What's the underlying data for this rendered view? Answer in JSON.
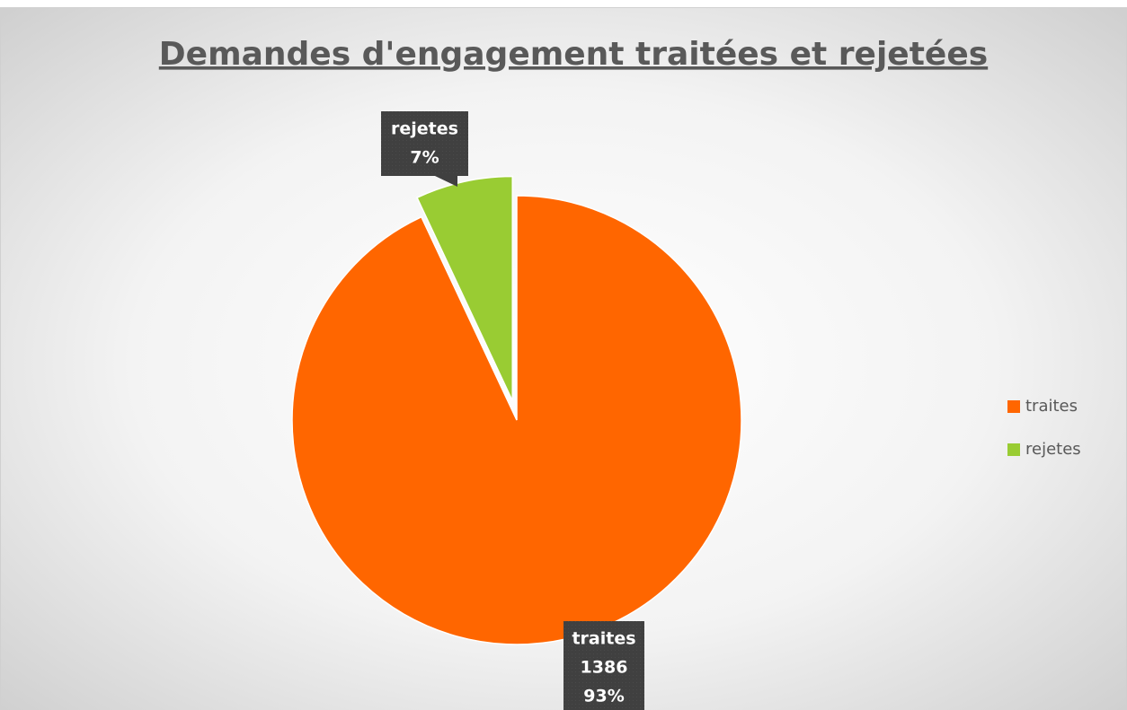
{
  "chart_data": {
    "type": "pie",
    "title": "Demandes d'engagement traitées et rejetées",
    "categories": [
      "traites",
      "rejetes"
    ],
    "values": [
      1386,
      104
    ],
    "percent_labels": [
      "93%",
      "7%"
    ],
    "colors": [
      "#ff6600",
      "#99cc33"
    ],
    "exploded": [
      false,
      true
    ],
    "legend": "right"
  }
}
